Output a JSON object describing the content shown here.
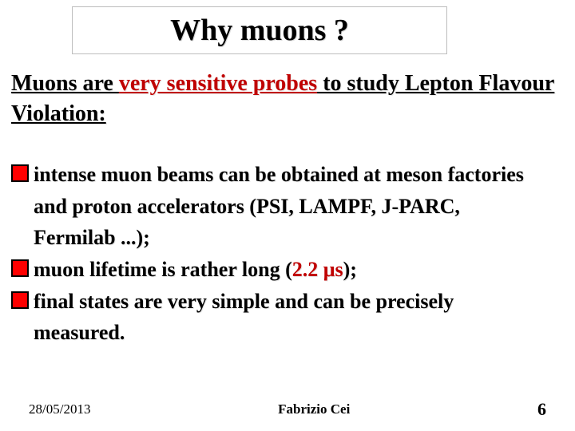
{
  "title": "Why muons ?",
  "intro": {
    "pre": "Muons are ",
    "keyword": "very sensitive probes",
    "post": " to study Lepton Flavour Violation:"
  },
  "bullets": {
    "b1_l1": "intense muon beams can be obtained at meson factories",
    "b1_l2": "and proton accelerators (PSI, LAMPF, J-PARC,",
    "b1_l3": "Fermilab ...);",
    "b2_pre": "muon lifetime is rather long (",
    "b2_red": "2.2 μs",
    "b2_post": ");",
    "b3_l1": "final states are very simple and can be precisely",
    "b3_l2": "measured."
  },
  "footer": {
    "date": "28/05/2013",
    "author": "Fabrizio Cei",
    "page": "6"
  },
  "style": {
    "title_fontsize": 38,
    "body_fontsize": 26,
    "intro_fontsize": 28,
    "accent_red": "#c00000",
    "bullet_fill": "#ff0000",
    "bullet_border": "#000000",
    "background": "#ffffff"
  }
}
